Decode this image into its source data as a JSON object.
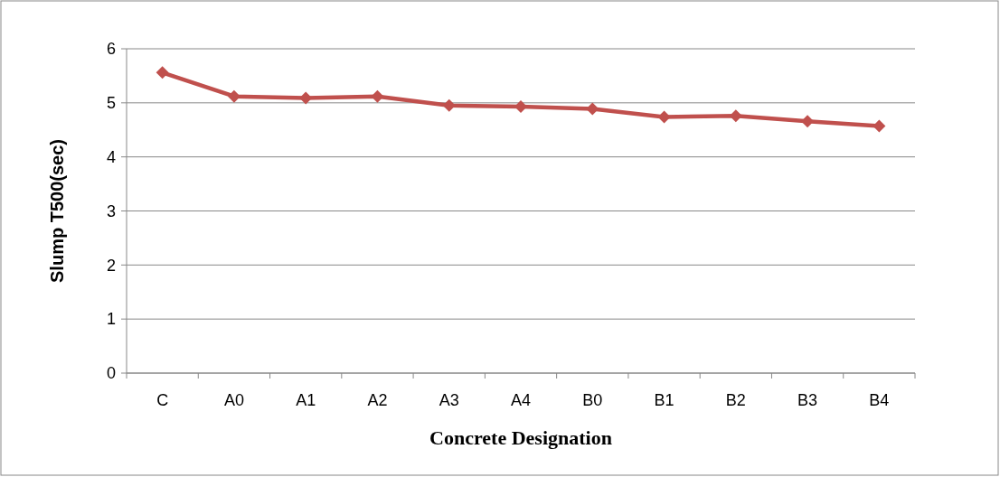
{
  "chart_data": {
    "type": "line",
    "xlabel": "Concrete Designation",
    "ylabel": "Slump T500(sec)",
    "categories": [
      "C",
      "A0",
      "A1",
      "A2",
      "A3",
      "A4",
      "B0",
      "B1",
      "B2",
      "B3",
      "B4"
    ],
    "series": [
      {
        "color": "#c0504d",
        "values": [
          5.56,
          5.12,
          5.09,
          5.12,
          4.95,
          4.93,
          4.89,
          4.74,
          4.76,
          4.66,
          4.57
        ]
      }
    ],
    "ylim": [
      0,
      6
    ],
    "yticks": [
      0,
      1,
      2,
      3,
      4,
      5,
      6
    ],
    "grid": "y",
    "marker": "diamond"
  }
}
